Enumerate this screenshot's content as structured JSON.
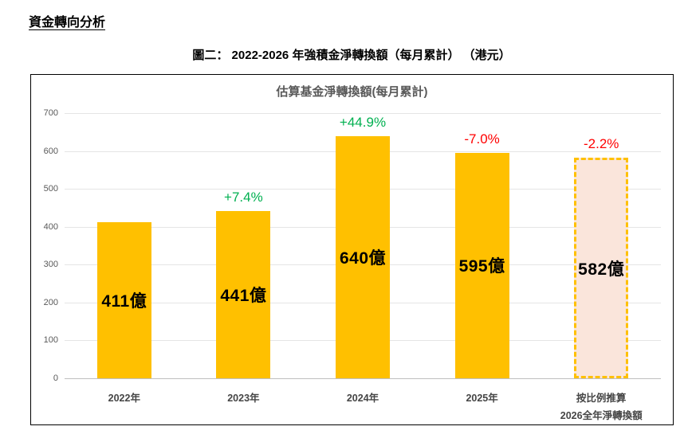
{
  "page": {
    "heading": "資金轉向分析",
    "caption": "圖二： 2022-2026 年強積金淨轉換額（每月累計） （港元）"
  },
  "chart_data": {
    "type": "bar",
    "title": "估算基金淨轉換額(每月累計)",
    "categories": [
      "2022年",
      "2023年",
      "2024年",
      "2025年",
      "按比例推算\n2026全年淨轉換額"
    ],
    "values": [
      411,
      441,
      640,
      595,
      582
    ],
    "bar_labels": [
      "411億",
      "441億",
      "640億",
      "595億",
      "582億"
    ],
    "pct_labels": [
      "",
      "+7.4%",
      "+44.9%",
      "-7.0%",
      "-2.2%"
    ],
    "unit": "港元(億)",
    "ylim": [
      0,
      700
    ],
    "ytick_step": 100,
    "grid": true,
    "projected_index": 4,
    "colors": {
      "bar": "#FFC000",
      "projected_fill": "#FAE5DB",
      "projected_border": "#FFC000",
      "increase": "#00B050",
      "decrease": "#FF0000"
    }
  }
}
